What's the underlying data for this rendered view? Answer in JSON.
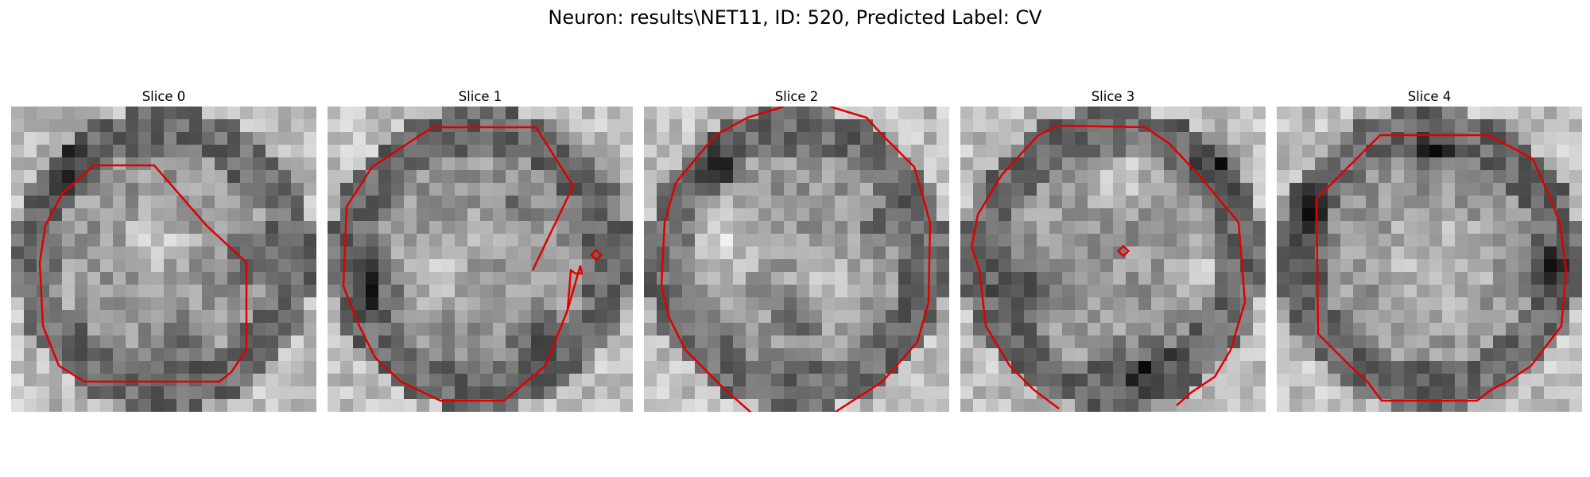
{
  "figure": {
    "title": "Neuron: results\\NET11, ID: 520, Predicted Label: CV"
  },
  "panels": [
    {
      "title": "Slice 0"
    },
    {
      "title": "Slice 1"
    },
    {
      "title": "Slice 2"
    },
    {
      "title": "Slice 3"
    },
    {
      "title": "Slice 4"
    }
  ],
  "colors": {
    "contour": "#e00000",
    "background": "#ffffff"
  }
}
